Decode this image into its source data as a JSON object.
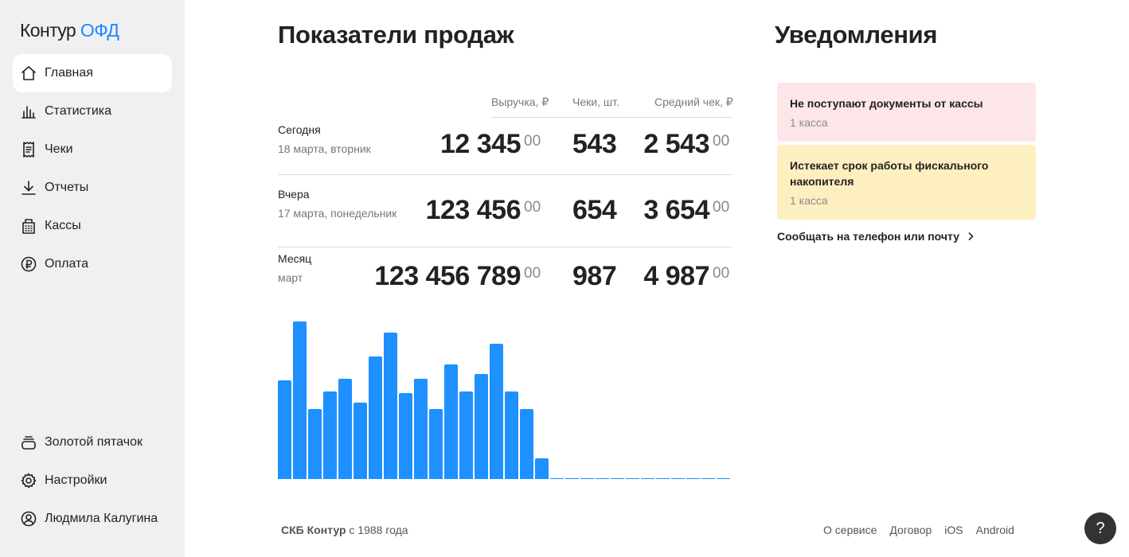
{
  "brand": {
    "name": "Контур",
    "product": "ОФД",
    "accent": "#1e88ff"
  },
  "sidebar": {
    "items": [
      {
        "label": "Главная",
        "icon": "home-icon",
        "active": true
      },
      {
        "label": "Статистика",
        "icon": "bar-chart-icon"
      },
      {
        "label": "Чеки",
        "icon": "receipt-icon"
      },
      {
        "label": "Отчеты",
        "icon": "download-icon"
      },
      {
        "label": "Кассы",
        "icon": "cash-register-icon"
      },
      {
        "label": "Оплата",
        "icon": "ruble-icon"
      }
    ],
    "bottom_items": [
      {
        "label": "Золотой пятачок",
        "icon": "coins-icon"
      },
      {
        "label": "Настройки",
        "icon": "gear-icon"
      },
      {
        "label": "Людмила Калугина",
        "icon": "user-icon"
      }
    ]
  },
  "sales": {
    "title": "Показатели продаж",
    "columns": {
      "revenue": "Выручка, ₽",
      "checks": "Чеки, шт.",
      "average": "Средний чек, ₽"
    },
    "rows": [
      {
        "label": "Сегодня",
        "sub": "18 марта, вторник",
        "revenue": "12 345",
        "revenue_cents": "00",
        "checks": "543",
        "average": "2 543",
        "average_cents": "00"
      },
      {
        "label": "Вчера",
        "sub": "17 марта, понедельник",
        "revenue": "123 456",
        "revenue_cents": "00",
        "checks": "654",
        "average": "3 654",
        "average_cents": "00"
      },
      {
        "label": "Месяц",
        "sub": "март",
        "revenue": "123 456 789",
        "revenue_cents": "00",
        "checks": "987",
        "average": "4 987",
        "average_cents": "00"
      }
    ]
  },
  "chart_data": {
    "type": "bar",
    "title": "",
    "color": "#1e90ff",
    "values": [
      62,
      99,
      44,
      55,
      63,
      48,
      77,
      92,
      54,
      63,
      44,
      72,
      55,
      66,
      85,
      55,
      44,
      13,
      0,
      0,
      0,
      0,
      0,
      0,
      0,
      0,
      0,
      0,
      0,
      0
    ],
    "ylim": [
      0,
      100
    ]
  },
  "notifications": {
    "title": "Уведомления",
    "items": [
      {
        "title": "Не поступают документы от кассы",
        "sub": "1 касса",
        "color": "#fde6e8"
      },
      {
        "title": "Истекает срок работы фискального накопителя",
        "sub": "1 касса",
        "color": "#fdefc0"
      }
    ],
    "link": "Сообщать на телефон или почту"
  },
  "footer": {
    "company": "СКБ Контур",
    "since": "с 1988 года",
    "links": [
      "О сервисе",
      "Договор",
      "iOS",
      "Android"
    ]
  },
  "help": {
    "label": "?"
  }
}
